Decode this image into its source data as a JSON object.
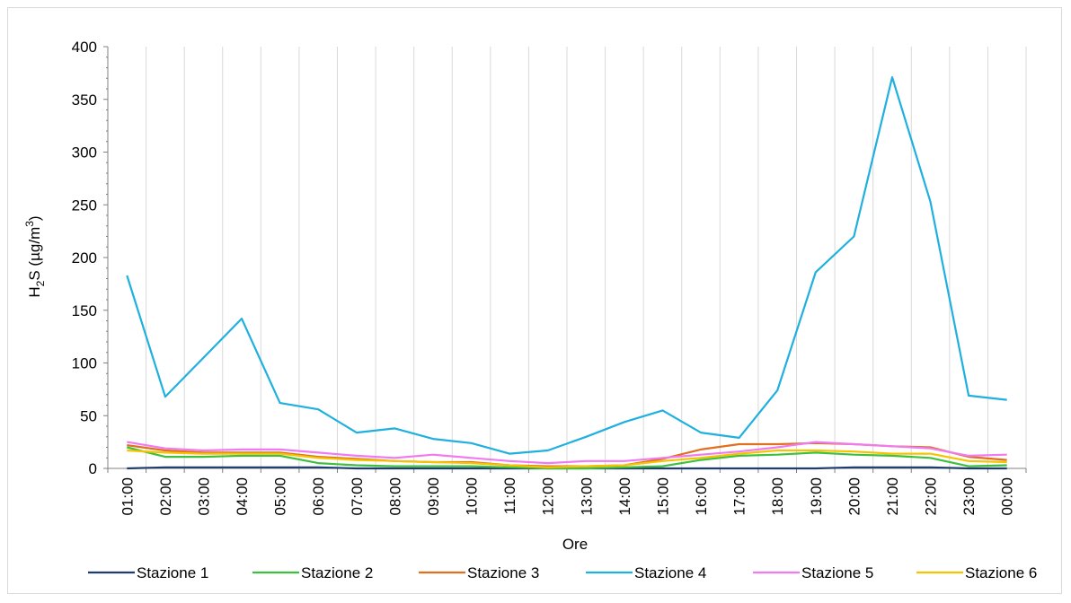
{
  "chart_data": {
    "type": "line",
    "xlabel": "Ore",
    "ylabel": {
      "prefix": "H",
      "sub": "2",
      "mid": "S (µg/m",
      "sup": "3",
      "suffix": ")"
    },
    "ylim": [
      0,
      400
    ],
    "yticks": [
      0,
      50,
      100,
      150,
      200,
      250,
      300,
      350,
      400
    ],
    "grid": "vertical",
    "legend_position": "bottom",
    "categories": [
      "01:00",
      "02:00",
      "03:00",
      "04:00",
      "05:00",
      "06:00",
      "07:00",
      "08:00",
      "09:00",
      "10:00",
      "11:00",
      "12:00",
      "13:00",
      "14:00",
      "15:00",
      "16:00",
      "17:00",
      "18:00",
      "19:00",
      "20:00",
      "21:00",
      "22:00",
      "23:00",
      "00:00"
    ],
    "series": [
      {
        "name": "Stazione 1",
        "color": "#1f3c6e",
        "values": [
          0,
          1,
          1,
          1,
          1,
          1,
          0,
          0,
          0,
          0,
          0,
          0,
          0,
          0,
          0,
          0,
          0,
          0,
          0,
          1,
          1,
          1,
          0,
          0
        ]
      },
      {
        "name": "Stazione 2",
        "color": "#3fbf3f",
        "values": [
          20,
          11,
          11,
          12,
          12,
          5,
          3,
          2,
          2,
          2,
          1,
          0,
          0,
          1,
          2,
          8,
          12,
          13,
          15,
          13,
          12,
          10,
          2,
          3
        ]
      },
      {
        "name": "Stazione 3",
        "color": "#e0701f",
        "values": [
          22,
          17,
          15,
          15,
          15,
          11,
          9,
          7,
          6,
          6,
          3,
          2,
          2,
          3,
          9,
          18,
          23,
          23,
          24,
          23,
          21,
          20,
          11,
          8
        ]
      },
      {
        "name": "Stazione 4",
        "color": "#1fb0e0",
        "values": [
          183,
          68,
          105,
          142,
          62,
          56,
          34,
          38,
          28,
          24,
          14,
          17,
          30,
          44,
          55,
          34,
          29,
          74,
          186,
          220,
          371,
          253,
          69,
          65
        ]
      },
      {
        "name": "Stazione 5",
        "color": "#f07af0",
        "values": [
          25,
          19,
          17,
          18,
          18,
          15,
          12,
          10,
          13,
          10,
          7,
          5,
          7,
          7,
          10,
          13,
          16,
          20,
          25,
          23,
          21,
          19,
          12,
          13
        ]
      },
      {
        "name": "Stazione 6",
        "color": "#f5c400",
        "values": [
          17,
          15,
          14,
          14,
          14,
          10,
          8,
          7,
          6,
          5,
          3,
          1,
          2,
          3,
          7,
          10,
          14,
          17,
          17,
          16,
          14,
          14,
          7,
          6
        ]
      }
    ]
  }
}
